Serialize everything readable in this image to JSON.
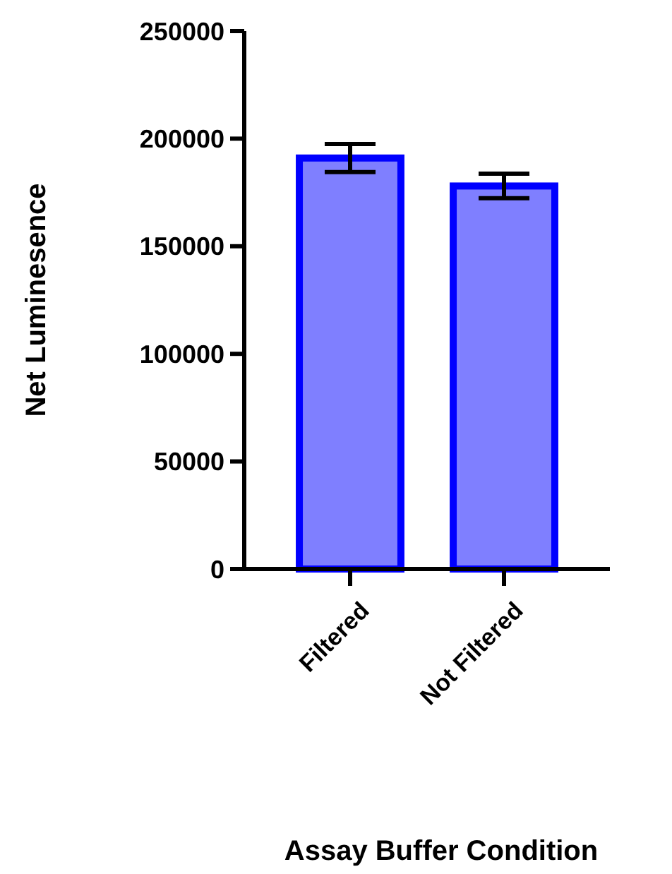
{
  "chart_data": {
    "type": "bar",
    "xlabel": "Assay Buffer Condition",
    "ylabel": "Net Luminesence",
    "categories": [
      "Filtered",
      "Not Filtered"
    ],
    "values": [
      191000,
      178000
    ],
    "errors": [
      6500,
      5700
    ],
    "color": "#0000ff",
    "ylim": [
      0,
      250000
    ],
    "yticks": [
      0,
      50000,
      100000,
      150000,
      200000,
      250000
    ],
    "grid": false
  }
}
